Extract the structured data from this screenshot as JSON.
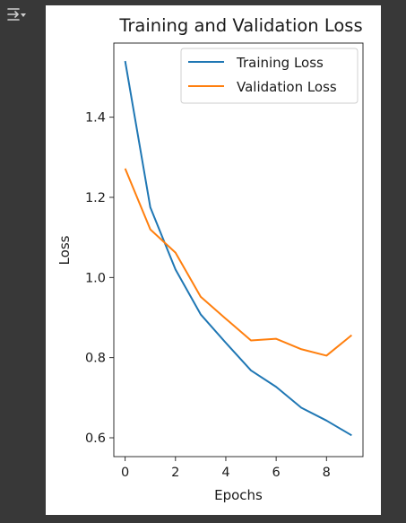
{
  "toolbar": {
    "output_options_icon": "output-options-icon"
  },
  "chart_data": {
    "type": "line",
    "title": "Training and Validation Loss",
    "xlabel": "Epochs",
    "ylabel": "Loss",
    "x": [
      0,
      1,
      2,
      3,
      4,
      5,
      6,
      7,
      8,
      9
    ],
    "xlim": [
      -0.45,
      9.45
    ],
    "ylim": [
      0.553,
      1.585
    ],
    "x_ticks": [
      0,
      2,
      4,
      6,
      8
    ],
    "x_tick_labels": [
      "0",
      "2",
      "4",
      "6",
      "8"
    ],
    "y_ticks": [
      0.6,
      0.8,
      1.0,
      1.2,
      1.4
    ],
    "y_tick_labels": [
      "0.6",
      "0.8",
      "1.0",
      "1.2",
      "1.4"
    ],
    "grid": false,
    "legend_position": "top-right",
    "series": [
      {
        "name": "Training Loss",
        "color": "#1f77b4",
        "values": [
          1.54,
          1.175,
          1.02,
          0.908,
          0.837,
          0.768,
          0.727,
          0.675,
          0.643,
          0.606
        ]
      },
      {
        "name": "Validation Loss",
        "color": "#ff7f0e",
        "values": [
          1.272,
          1.12,
          1.062,
          0.952,
          0.897,
          0.843,
          0.847,
          0.821,
          0.805,
          0.856
        ]
      }
    ]
  }
}
